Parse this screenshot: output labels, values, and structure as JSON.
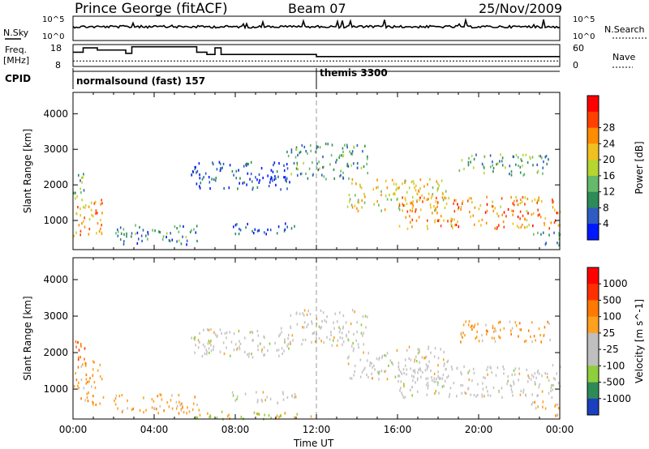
{
  "header": {
    "site": "Prince George (fitACF)",
    "beam": "Beam 07",
    "date": "25/Nov/2009"
  },
  "noise_panel": {
    "left_label": "N.Sky",
    "right_label": "N.Search",
    "left_ticks": [
      "10^5",
      "10^0"
    ],
    "right_ticks": [
      "10^5",
      "10^0"
    ]
  },
  "freq_panel": {
    "left_label_1": "Freq.",
    "left_label_2": "[MHz]",
    "right_label": "Nave",
    "left_ticks": [
      "18",
      "8"
    ],
    "right_ticks": [
      "60",
      "0"
    ],
    "freq_steps": [
      {
        "t": 0.0,
        "v": 14.5
      },
      {
        "t": 0.5,
        "v": 16.5
      },
      {
        "t": 1.2,
        "v": 15.5
      },
      {
        "t": 2.6,
        "v": 14.0
      },
      {
        "t": 2.9,
        "v": 17.0
      },
      {
        "t": 6.1,
        "v": 14.5
      },
      {
        "t": 6.6,
        "v": 13.5
      },
      {
        "t": 7.0,
        "v": 16.5
      },
      {
        "t": 7.3,
        "v": 13.5
      },
      {
        "t": 12.0,
        "v": 12.5
      },
      {
        "t": 24.0,
        "v": 12.5
      }
    ],
    "nave_level": 15
  },
  "cpid": {
    "label": "CPID",
    "modes": [
      {
        "start": 0,
        "name": "normalsound (fast) 157"
      },
      {
        "start": 12,
        "name": "themis 3300"
      }
    ]
  },
  "chart_data": [
    {
      "type": "heatmap",
      "name": "Power",
      "ylabel": "Slant Range [km]",
      "xlabel": "Time UT",
      "ylim": [
        180,
        4600
      ],
      "xlim": [
        0,
        24
      ],
      "yticks": [
        1000,
        2000,
        3000,
        4000
      ],
      "xticks": [
        "00:00",
        "04:00",
        "08:00",
        "12:00",
        "16:00",
        "20:00",
        "00:00"
      ],
      "colorbar_label": "Power [dB]",
      "colorbar_ticks": [
        "4",
        "8",
        "12",
        "16",
        "20",
        "24",
        "28"
      ],
      "colorbar_colors": [
        "#0018ff",
        "#2f5cc0",
        "#2e8b57",
        "#66b96a",
        "#b8d430",
        "#f0c020",
        "#ff8c00",
        "#ff4000",
        "#ff0000"
      ],
      "echo_regions": [
        {
          "t0": 0.0,
          "t1": 1.5,
          "r0": 600,
          "r1": 1800,
          "level": 0.75
        },
        {
          "t0": 0.0,
          "t1": 0.7,
          "r0": 1800,
          "r1": 2400,
          "level": 0.45
        },
        {
          "t0": 2.0,
          "t1": 6.2,
          "r0": 350,
          "r1": 900,
          "level": 0.3
        },
        {
          "t0": 5.8,
          "t1": 10.8,
          "r0": 1900,
          "r1": 2700,
          "level": 0.15
        },
        {
          "t0": 7.5,
          "t1": 11.0,
          "r0": 650,
          "r1": 950,
          "level": 0.15
        },
        {
          "t0": 10.5,
          "t1": 14.5,
          "r0": 2200,
          "r1": 3200,
          "level": 0.35
        },
        {
          "t0": 13.5,
          "t1": 18.5,
          "r0": 1300,
          "r1": 2200,
          "level": 0.65
        },
        {
          "t0": 16.0,
          "t1": 24.0,
          "r0": 800,
          "r1": 1700,
          "level": 0.8
        },
        {
          "t0": 19.0,
          "t1": 23.5,
          "r0": 2300,
          "r1": 2900,
          "level": 0.4
        },
        {
          "t0": 22.5,
          "t1": 24.0,
          "r0": 300,
          "r1": 700,
          "level": 0.35
        }
      ]
    },
    {
      "type": "heatmap",
      "name": "Velocity",
      "ylabel": "Slant Range [km]",
      "xlabel": "Time UT",
      "ylim": [
        180,
        4600
      ],
      "xlim": [
        0,
        24
      ],
      "yticks": [
        1000,
        2000,
        3000,
        4000
      ],
      "xticks": [
        "00:00",
        "04:00",
        "08:00",
        "12:00",
        "16:00",
        "20:00",
        "00:00"
      ],
      "colorbar_label": "Velocity [m s^-1]",
      "colorbar_ticks": [
        "1000",
        "500",
        "100",
        "25",
        "-25",
        "-100",
        "-500",
        "-1000"
      ],
      "colorbar_colors": [
        "#1a3fbf",
        "#2e8b57",
        "#8fce3c",
        "#bfbfbf",
        "#bfbfbf",
        "#ffa020",
        "#ff7a00",
        "#ff3000",
        "#ff0000"
      ],
      "echo_regions": [
        {
          "t0": 0.0,
          "t1": 1.5,
          "r0": 600,
          "r1": 1800,
          "kind": "orange"
        },
        {
          "t0": 0.0,
          "t1": 0.7,
          "r0": 1800,
          "r1": 2400,
          "kind": "red"
        },
        {
          "t0": 2.0,
          "t1": 6.2,
          "r0": 350,
          "r1": 900,
          "kind": "orange"
        },
        {
          "t0": 5.8,
          "t1": 10.8,
          "r0": 1900,
          "r1": 2700,
          "kind": "grey"
        },
        {
          "t0": 7.5,
          "t1": 11.0,
          "r0": 650,
          "r1": 950,
          "kind": "grey"
        },
        {
          "t0": 10.5,
          "t1": 14.5,
          "r0": 2200,
          "r1": 3200,
          "kind": "grey"
        },
        {
          "t0": 13.5,
          "t1": 18.5,
          "r0": 1300,
          "r1": 2200,
          "kind": "grey"
        },
        {
          "t0": 16.0,
          "t1": 24.0,
          "r0": 800,
          "r1": 1700,
          "kind": "grey"
        },
        {
          "t0": 19.0,
          "t1": 23.5,
          "r0": 2300,
          "r1": 2900,
          "kind": "orange"
        },
        {
          "t0": 22.5,
          "t1": 24.0,
          "r0": 300,
          "r1": 700,
          "kind": "orange"
        },
        {
          "t0": 6.0,
          "t1": 12.0,
          "r0": 200,
          "r1": 420,
          "kind": "green"
        }
      ]
    }
  ]
}
